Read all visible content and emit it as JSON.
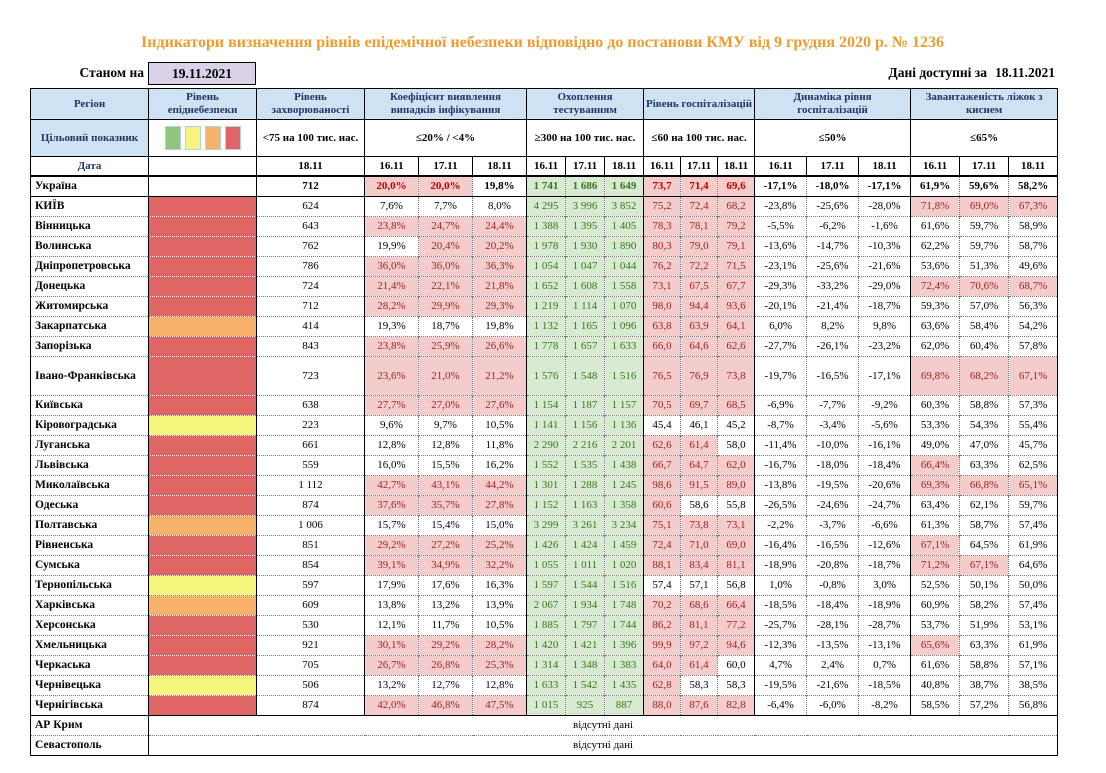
{
  "title": "Індикатори визначення рівнів епідемічної небезпеки відповідно до постанови КМУ від 9 грудня 2020 р. № 1236",
  "as_of": {
    "label": "Станом на",
    "date": "19.11.2021"
  },
  "available": {
    "label": "Дані доступні за",
    "date": "18.11.2021"
  },
  "colors": {
    "header_bg": "#cfe2f3",
    "header_text": "#1f3864",
    "title_text": "#ed9c31",
    "asof_box_bg": "#d9d2e9",
    "danger_red": "#e06666",
    "danger_orange": "#f6b26b",
    "danger_yellow": "#f5f57d",
    "legend_green": "#93c47d",
    "flag_bg": "#f4cccc",
    "flag_text": "#9c2323",
    "flag_bold_text": "#c00000",
    "green_bg": "#d9ead3",
    "green_text": "#38761d"
  },
  "header": {
    "region_label": "Регіон",
    "target_label": "Цільовий показник",
    "date_label": "Дата",
    "groups": [
      {
        "name": "Рівень епіднебезпеки",
        "target": "",
        "dates": [],
        "legend": [
          "green",
          "yellow",
          "orange",
          "red"
        ]
      },
      {
        "name": "Рівень захворюваності",
        "target": "<75 на 100 тис. нас.",
        "dates": [
          "18.11"
        ]
      },
      {
        "name": "Коефіцієнт виявлення випадків інфікування",
        "target": "≤20% / <4%",
        "dates": [
          "16.11",
          "17.11",
          "18.11"
        ]
      },
      {
        "name": "Охоплення тестуванням",
        "target": "≥300 на 100 тис. нас.",
        "dates": [
          "16.11",
          "17.11",
          "18.11"
        ]
      },
      {
        "name": "Рівень госпіталізацій",
        "target": "≤60 на 100 тис. нас.",
        "dates": [
          "16.11",
          "17.11",
          "18.11"
        ]
      },
      {
        "name": "Динаміка рівня госпіталізацій",
        "target": "≤50%",
        "dates": [
          "16.11",
          "17.11",
          "18.11"
        ]
      },
      {
        "name": "Завантаженість ліжок з киснем",
        "target": "≤65%",
        "dates": [
          "16.11",
          "17.11",
          "18.11"
        ]
      }
    ]
  },
  "no_data_text": "відсутні дані",
  "rows": [
    {
      "region": "Україна",
      "danger": "none",
      "bold": true,
      "incidence": "712",
      "coef": [
        "20,0%",
        "20,0%",
        "19,8%"
      ],
      "coef_flags": [
        1,
        1,
        0
      ],
      "testing": [
        "1 741",
        "1 686",
        "1 649"
      ],
      "hosp": [
        "73,7",
        "71,4",
        "69,6"
      ],
      "hosp_flags": [
        1,
        1,
        1
      ],
      "dyn": [
        "-17,1%",
        "-18,0%",
        "-17,1%"
      ],
      "beds": [
        "61,9%",
        "59,6%",
        "58,2%"
      ],
      "beds_flags": [
        0,
        0,
        0
      ]
    },
    {
      "region": "КИЇВ",
      "danger": "red",
      "incidence": "624",
      "coef": [
        "7,6%",
        "7,7%",
        "8,0%"
      ],
      "coef_flags": [
        0,
        0,
        0
      ],
      "testing": [
        "4 295",
        "3 996",
        "3 852"
      ],
      "hosp": [
        "75,2",
        "72,4",
        "68,2"
      ],
      "hosp_flags": [
        1,
        1,
        1
      ],
      "dyn": [
        "-23,8%",
        "-25,6%",
        "-28,0%"
      ],
      "beds": [
        "71,8%",
        "69,0%",
        "67,3%"
      ],
      "beds_flags": [
        1,
        1,
        1
      ]
    },
    {
      "region": "Вінницька",
      "danger": "red",
      "incidence": "643",
      "coef": [
        "23,8%",
        "24,7%",
        "24,4%"
      ],
      "coef_flags": [
        1,
        1,
        1
      ],
      "testing": [
        "1 388",
        "1 395",
        "1 405"
      ],
      "hosp": [
        "78,3",
        "78,1",
        "79,2"
      ],
      "hosp_flags": [
        1,
        1,
        1
      ],
      "dyn": [
        "-5,5%",
        "-6,2%",
        "-1,6%"
      ],
      "beds": [
        "61,6%",
        "59,7%",
        "58,9%"
      ],
      "beds_flags": [
        0,
        0,
        0
      ]
    },
    {
      "region": "Волинська",
      "danger": "red",
      "incidence": "762",
      "coef": [
        "19,9%",
        "20,4%",
        "20,2%"
      ],
      "coef_flags": [
        0,
        1,
        1
      ],
      "testing": [
        "1 978",
        "1 930",
        "1 890"
      ],
      "hosp": [
        "80,3",
        "79,0",
        "79,1"
      ],
      "hosp_flags": [
        1,
        1,
        1
      ],
      "dyn": [
        "-13,6%",
        "-14,7%",
        "-10,3%"
      ],
      "beds": [
        "62,2%",
        "59,7%",
        "58,7%"
      ],
      "beds_flags": [
        0,
        0,
        0
      ]
    },
    {
      "region": "Дніпропетровська",
      "danger": "red",
      "incidence": "786",
      "coef": [
        "36,0%",
        "36,0%",
        "36,3%"
      ],
      "coef_flags": [
        1,
        1,
        1
      ],
      "testing": [
        "1 054",
        "1 047",
        "1 044"
      ],
      "hosp": [
        "76,2",
        "72,2",
        "71,5"
      ],
      "hosp_flags": [
        1,
        1,
        1
      ],
      "dyn": [
        "-23,1%",
        "-25,6%",
        "-21,6%"
      ],
      "beds": [
        "53,6%",
        "51,3%",
        "49,6%"
      ],
      "beds_flags": [
        0,
        0,
        0
      ]
    },
    {
      "region": "Донецька",
      "danger": "red",
      "incidence": "724",
      "coef": [
        "21,4%",
        "22,1%",
        "21,8%"
      ],
      "coef_flags": [
        1,
        1,
        1
      ],
      "testing": [
        "1 652",
        "1 608",
        "1 558"
      ],
      "hosp": [
        "73,1",
        "67,5",
        "67,7"
      ],
      "hosp_flags": [
        1,
        1,
        1
      ],
      "dyn": [
        "-29,3%",
        "-33,2%",
        "-29,0%"
      ],
      "beds": [
        "72,4%",
        "70,6%",
        "68,7%"
      ],
      "beds_flags": [
        1,
        1,
        1
      ]
    },
    {
      "region": "Житомирська",
      "danger": "red",
      "incidence": "712",
      "coef": [
        "28,2%",
        "29,9%",
        "29,3%"
      ],
      "coef_flags": [
        1,
        1,
        1
      ],
      "testing": [
        "1 219",
        "1 114",
        "1 070"
      ],
      "hosp": [
        "98,0",
        "94,4",
        "93,6"
      ],
      "hosp_flags": [
        1,
        1,
        1
      ],
      "dyn": [
        "-20,1%",
        "-21,4%",
        "-18,7%"
      ],
      "beds": [
        "59,3%",
        "57,0%",
        "56,3%"
      ],
      "beds_flags": [
        0,
        0,
        0
      ]
    },
    {
      "region": "Закарпатська",
      "danger": "orange",
      "incidence": "414",
      "coef": [
        "19,3%",
        "18,7%",
        "19,8%"
      ],
      "coef_flags": [
        0,
        0,
        0
      ],
      "testing": [
        "1 132",
        "1 165",
        "1 096"
      ],
      "hosp": [
        "63,8",
        "63,9",
        "64,1"
      ],
      "hosp_flags": [
        1,
        1,
        1
      ],
      "dyn": [
        "6,0%",
        "8,2%",
        "9,8%"
      ],
      "beds": [
        "63,6%",
        "58,4%",
        "54,2%"
      ],
      "beds_flags": [
        0,
        0,
        0
      ]
    },
    {
      "region": "Запорізька",
      "danger": "red",
      "incidence": "843",
      "coef": [
        "23,8%",
        "25,9%",
        "26,6%"
      ],
      "coef_flags": [
        1,
        1,
        1
      ],
      "testing": [
        "1 778",
        "1 657",
        "1 633"
      ],
      "hosp": [
        "66,0",
        "64,6",
        "62,6"
      ],
      "hosp_flags": [
        1,
        1,
        1
      ],
      "dyn": [
        "-27,7%",
        "-26,1%",
        "-23,2%"
      ],
      "beds": [
        "62,0%",
        "60,4%",
        "57,8%"
      ],
      "beds_flags": [
        0,
        0,
        0
      ]
    },
    {
      "region": "Івано-Франківська",
      "danger": "red",
      "double": true,
      "incidence": "723",
      "coef": [
        "23,6%",
        "21,0%",
        "21,2%"
      ],
      "coef_flags": [
        1,
        1,
        1
      ],
      "testing": [
        "1 576",
        "1 548",
        "1 516"
      ],
      "hosp": [
        "76,5",
        "76,9",
        "73,8"
      ],
      "hosp_flags": [
        1,
        1,
        1
      ],
      "dyn": [
        "-19,7%",
        "-16,5%",
        "-17,1%"
      ],
      "beds": [
        "69,8%",
        "68,2%",
        "67,1%"
      ],
      "beds_flags": [
        1,
        1,
        1
      ]
    },
    {
      "region": "Київська",
      "danger": "red",
      "incidence": "638",
      "coef": [
        "27,7%",
        "27,0%",
        "27,6%"
      ],
      "coef_flags": [
        1,
        1,
        1
      ],
      "testing": [
        "1 154",
        "1 187",
        "1 157"
      ],
      "hosp": [
        "70,5",
        "69,7",
        "68,5"
      ],
      "hosp_flags": [
        1,
        1,
        1
      ],
      "dyn": [
        "-6,9%",
        "-7,7%",
        "-9,2%"
      ],
      "beds": [
        "60,3%",
        "58,8%",
        "57,3%"
      ],
      "beds_flags": [
        0,
        0,
        0
      ]
    },
    {
      "region": "Кіровоградська",
      "danger": "yellow",
      "incidence": "223",
      "coef": [
        "9,6%",
        "9,7%",
        "10,5%"
      ],
      "coef_flags": [
        0,
        0,
        0
      ],
      "testing": [
        "1 141",
        "1 156",
        "1 136"
      ],
      "hosp": [
        "45,4",
        "46,1",
        "45,2"
      ],
      "hosp_flags": [
        0,
        0,
        0
      ],
      "dyn": [
        "-8,7%",
        "-3,4%",
        "-5,6%"
      ],
      "beds": [
        "53,3%",
        "54,3%",
        "55,4%"
      ],
      "beds_flags": [
        0,
        0,
        0
      ]
    },
    {
      "region": "Луганська",
      "danger": "red",
      "incidence": "661",
      "coef": [
        "12,8%",
        "12,8%",
        "11,8%"
      ],
      "coef_flags": [
        0,
        0,
        0
      ],
      "testing": [
        "2 290",
        "2 216",
        "2 201"
      ],
      "hosp": [
        "62,6",
        "61,4",
        "58,0"
      ],
      "hosp_flags": [
        1,
        1,
        0
      ],
      "dyn": [
        "-11,4%",
        "-10,0%",
        "-16,1%"
      ],
      "beds": [
        "49,0%",
        "47,0%",
        "45,7%"
      ],
      "beds_flags": [
        0,
        0,
        0
      ]
    },
    {
      "region": "Львівська",
      "danger": "red",
      "incidence": "559",
      "coef": [
        "16,0%",
        "15,5%",
        "16,2%"
      ],
      "coef_flags": [
        0,
        0,
        0
      ],
      "testing": [
        "1 552",
        "1 535",
        "1 438"
      ],
      "hosp": [
        "66,7",
        "64,7",
        "62,0"
      ],
      "hosp_flags": [
        1,
        1,
        1
      ],
      "dyn": [
        "-16,7%",
        "-18,0%",
        "-18,4%"
      ],
      "beds": [
        "66,4%",
        "63,3%",
        "62,5%"
      ],
      "beds_flags": [
        1,
        0,
        0
      ]
    },
    {
      "region": "Миколаївська",
      "danger": "red",
      "incidence": "1 112",
      "coef": [
        "42,7%",
        "43,1%",
        "44,2%"
      ],
      "coef_flags": [
        1,
        1,
        1
      ],
      "testing": [
        "1 301",
        "1 288",
        "1 245"
      ],
      "hosp": [
        "98,6",
        "91,5",
        "89,0"
      ],
      "hosp_flags": [
        1,
        1,
        1
      ],
      "dyn": [
        "-13,8%",
        "-19,5%",
        "-20,6%"
      ],
      "beds": [
        "69,3%",
        "66,8%",
        "65,1%"
      ],
      "beds_flags": [
        1,
        1,
        1
      ]
    },
    {
      "region": "Одеська",
      "danger": "red",
      "incidence": "874",
      "coef": [
        "37,6%",
        "35,7%",
        "27,8%"
      ],
      "coef_flags": [
        1,
        1,
        1
      ],
      "testing": [
        "1 152",
        "1 163",
        "1 358"
      ],
      "hosp": [
        "60,6",
        "58,6",
        "55,8"
      ],
      "hosp_flags": [
        1,
        0,
        0
      ],
      "dyn": [
        "-26,5%",
        "-24,6%",
        "-24,7%"
      ],
      "beds": [
        "63,4%",
        "62,1%",
        "59,7%"
      ],
      "beds_flags": [
        0,
        0,
        0
      ]
    },
    {
      "region": "Полтавська",
      "danger": "orange",
      "incidence": "1 006",
      "coef": [
        "15,7%",
        "15,4%",
        "15,0%"
      ],
      "coef_flags": [
        0,
        0,
        0
      ],
      "testing": [
        "3 299",
        "3 261",
        "3 234"
      ],
      "hosp": [
        "75,1",
        "73,8",
        "73,1"
      ],
      "hosp_flags": [
        1,
        1,
        1
      ],
      "dyn": [
        "-2,2%",
        "-3,7%",
        "-6,6%"
      ],
      "beds": [
        "61,3%",
        "58,7%",
        "57,4%"
      ],
      "beds_flags": [
        0,
        0,
        0
      ]
    },
    {
      "region": "Рівненська",
      "danger": "red",
      "incidence": "851",
      "coef": [
        "29,2%",
        "27,2%",
        "25,2%"
      ],
      "coef_flags": [
        1,
        1,
        1
      ],
      "testing": [
        "1 426",
        "1 424",
        "1 459"
      ],
      "hosp": [
        "72,4",
        "71,0",
        "69,0"
      ],
      "hosp_flags": [
        1,
        1,
        1
      ],
      "dyn": [
        "-16,4%",
        "-16,5%",
        "-12,6%"
      ],
      "beds": [
        "67,1%",
        "64,5%",
        "61,9%"
      ],
      "beds_flags": [
        1,
        0,
        0
      ]
    },
    {
      "region": "Сумська",
      "danger": "red",
      "incidence": "854",
      "coef": [
        "39,1%",
        "34,9%",
        "32,2%"
      ],
      "coef_flags": [
        1,
        1,
        1
      ],
      "testing": [
        "1 055",
        "1 011",
        "1 020"
      ],
      "hosp": [
        "88,1",
        "83,4",
        "81,1"
      ],
      "hosp_flags": [
        1,
        1,
        1
      ],
      "dyn": [
        "-18,9%",
        "-20,8%",
        "-18,7%"
      ],
      "beds": [
        "71,2%",
        "67,1%",
        "64,6%"
      ],
      "beds_flags": [
        1,
        1,
        0
      ]
    },
    {
      "region": "Тернопільська",
      "danger": "yellow",
      "incidence": "597",
      "coef": [
        "17,9%",
        "17,6%",
        "16,3%"
      ],
      "coef_flags": [
        0,
        0,
        0
      ],
      "testing": [
        "1 597",
        "1 544",
        "1 516"
      ],
      "hosp": [
        "57,4",
        "57,1",
        "56,8"
      ],
      "hosp_flags": [
        0,
        0,
        0
      ],
      "dyn": [
        "1,0%",
        "-0,8%",
        "3,0%"
      ],
      "beds": [
        "52,5%",
        "50,1%",
        "50,0%"
      ],
      "beds_flags": [
        0,
        0,
        0
      ]
    },
    {
      "region": "Харківська",
      "danger": "orange",
      "incidence": "609",
      "coef": [
        "13,8%",
        "13,2%",
        "13,9%"
      ],
      "coef_flags": [
        0,
        0,
        0
      ],
      "testing": [
        "2 067",
        "1 934",
        "1 748"
      ],
      "hosp": [
        "70,2",
        "68,6",
        "66,4"
      ],
      "hosp_flags": [
        1,
        1,
        1
      ],
      "dyn": [
        "-18,5%",
        "-18,4%",
        "-18,9%"
      ],
      "beds": [
        "60,9%",
        "58,2%",
        "57,4%"
      ],
      "beds_flags": [
        0,
        0,
        0
      ]
    },
    {
      "region": "Херсонська",
      "danger": "red",
      "incidence": "530",
      "coef": [
        "12,1%",
        "11,7%",
        "10,5%"
      ],
      "coef_flags": [
        0,
        0,
        0
      ],
      "testing": [
        "1 885",
        "1 797",
        "1 744"
      ],
      "hosp": [
        "86,2",
        "81,1",
        "77,2"
      ],
      "hosp_flags": [
        1,
        1,
        1
      ],
      "dyn": [
        "-25,7%",
        "-28,1%",
        "-28,7%"
      ],
      "beds": [
        "53,7%",
        "51,9%",
        "53,1%"
      ],
      "beds_flags": [
        0,
        0,
        0
      ]
    },
    {
      "region": "Хмельницька",
      "danger": "red",
      "incidence": "921",
      "coef": [
        "30,1%",
        "29,2%",
        "28,2%"
      ],
      "coef_flags": [
        1,
        1,
        1
      ],
      "testing": [
        "1 420",
        "1 421",
        "1 396"
      ],
      "hosp": [
        "99,9",
        "97,2",
        "94,6"
      ],
      "hosp_flags": [
        1,
        1,
        1
      ],
      "dyn": [
        "-12,3%",
        "-13,5%",
        "-13,1%"
      ],
      "beds": [
        "65,6%",
        "63,3%",
        "61,9%"
      ],
      "beds_flags": [
        1,
        0,
        0
      ]
    },
    {
      "region": "Черкаська",
      "danger": "red",
      "incidence": "705",
      "coef": [
        "26,7%",
        "26,8%",
        "25,3%"
      ],
      "coef_flags": [
        1,
        1,
        1
      ],
      "testing": [
        "1 314",
        "1 348",
        "1 383"
      ],
      "hosp": [
        "64,0",
        "61,4",
        "60,0"
      ],
      "hosp_flags": [
        1,
        1,
        0
      ],
      "dyn": [
        "4,7%",
        "2,4%",
        "0,7%"
      ],
      "beds": [
        "61,6%",
        "58,8%",
        "57,1%"
      ],
      "beds_flags": [
        0,
        0,
        0
      ]
    },
    {
      "region": "Чернівецька",
      "danger": "yellow",
      "incidence": "506",
      "coef": [
        "13,2%",
        "12,7%",
        "12,8%"
      ],
      "coef_flags": [
        0,
        0,
        0
      ],
      "testing": [
        "1 633",
        "1 542",
        "1 435"
      ],
      "hosp": [
        "62,8",
        "58,3",
        "58,3"
      ],
      "hosp_flags": [
        1,
        0,
        0
      ],
      "dyn": [
        "-19,5%",
        "-21,6%",
        "-18,5%"
      ],
      "beds": [
        "40,8%",
        "38,7%",
        "38,5%"
      ],
      "beds_flags": [
        0,
        0,
        0
      ]
    },
    {
      "region": "Чернігівська",
      "danger": "red",
      "incidence": "874",
      "coef": [
        "42,0%",
        "46,8%",
        "47,5%"
      ],
      "coef_flags": [
        1,
        1,
        1
      ],
      "testing": [
        "1 015",
        "925",
        "887"
      ],
      "hosp": [
        "88,0",
        "87,6",
        "82,8"
      ],
      "hosp_flags": [
        1,
        1,
        1
      ],
      "dyn": [
        "-6,4%",
        "-6,0%",
        "-8,2%"
      ],
      "beds": [
        "58,5%",
        "57,2%",
        "56,8%"
      ],
      "beds_flags": [
        0,
        0,
        0
      ]
    },
    {
      "region": "АР Крим",
      "no_data": true
    },
    {
      "region": "Севастополь",
      "no_data": true
    }
  ]
}
